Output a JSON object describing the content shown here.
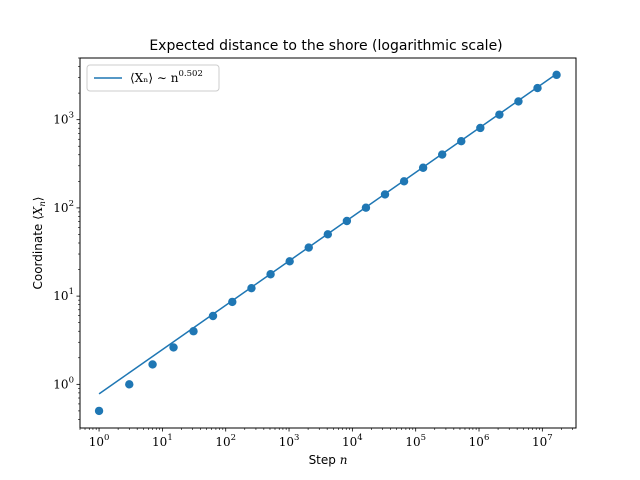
{
  "chart_data": {
    "type": "scatter",
    "title": "Expected distance to the shore (logarithmic scale)",
    "xlabel": "Step n",
    "ylabel": "Coordinate ⟨Xₙ⟩",
    "xscale": "log",
    "yscale": "log",
    "xlim": [
      0.5,
      34000000.0
    ],
    "ylim": [
      0.32,
      5000
    ],
    "grid": false,
    "legend_position": "upper-left",
    "x_ticks": [
      {
        "base": "10",
        "exp": "0",
        "value": 1
      },
      {
        "base": "10",
        "exp": "1",
        "value": 10
      },
      {
        "base": "10",
        "exp": "2",
        "value": 100
      },
      {
        "base": "10",
        "exp": "3",
        "value": 1000
      },
      {
        "base": "10",
        "exp": "4",
        "value": 10000
      },
      {
        "base": "10",
        "exp": "5",
        "value": 100000
      },
      {
        "base": "10",
        "exp": "6",
        "value": 1000000
      },
      {
        "base": "10",
        "exp": "7",
        "value": 10000000
      }
    ],
    "y_ticks": [
      {
        "base": "10",
        "exp": "0",
        "value": 1
      },
      {
        "base": "10",
        "exp": "1",
        "value": 10
      },
      {
        "base": "10",
        "exp": "2",
        "value": 100
      },
      {
        "base": "10",
        "exp": "3",
        "value": 1000
      }
    ],
    "color": "#1f77b4",
    "series": [
      {
        "kind": "points",
        "x": [
          1,
          3,
          7,
          15,
          31,
          63,
          127,
          255,
          511,
          1023,
          2047,
          4095,
          8191,
          16383,
          32767,
          65535,
          131071,
          262143,
          524287,
          1048575,
          2097151,
          4194303,
          8388607,
          16777215
        ],
        "y": [
          0.5,
          1.0,
          1.68,
          2.62,
          4.0,
          5.95,
          8.6,
          12.3,
          17.7,
          24.8,
          35.5,
          50.2,
          71.0,
          100.5,
          142,
          200,
          285,
          402,
          570,
          805,
          1140,
          1610,
          2280,
          3220
        ]
      },
      {
        "kind": "line",
        "name": "⟨Xₙ⟩ ∼ n^0.502",
        "coef": 0.78,
        "exponent": 0.502,
        "x_range": [
          1,
          16777215
        ]
      }
    ],
    "legend": {
      "text": "⟨Xₙ⟩ ∼ n",
      "exp": "0.502"
    }
  }
}
